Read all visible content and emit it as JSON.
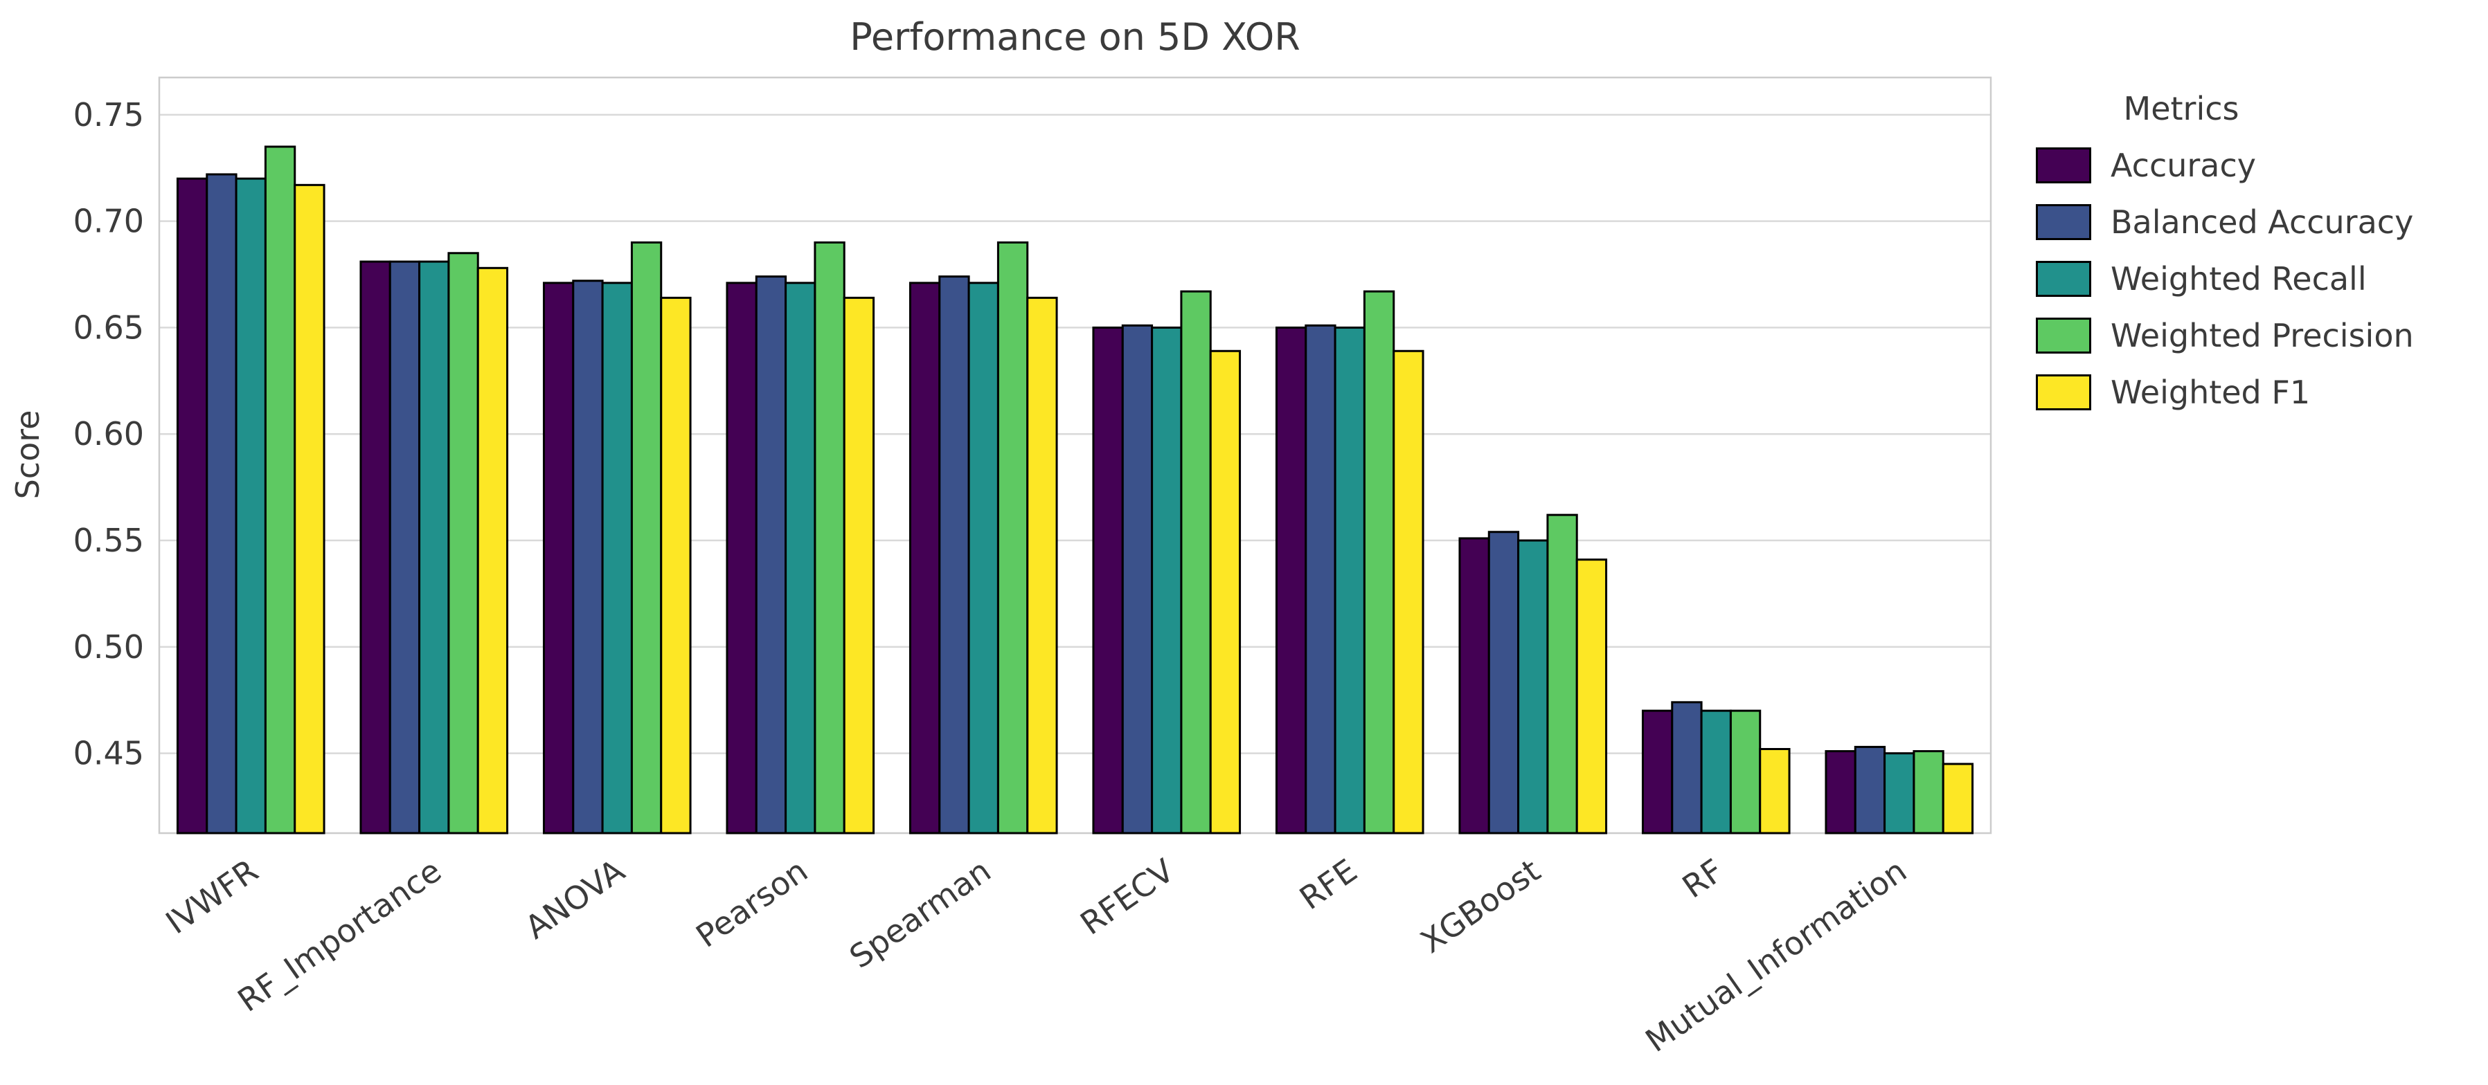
{
  "chart_data": {
    "type": "bar",
    "title": "Performance on 5D XOR",
    "ylabel": "Score",
    "xlabel": "",
    "legend_title": "Metrics",
    "legend_position": "right",
    "grid": true,
    "ylim": [
      0.4125,
      0.7675
    ],
    "yticks": [
      0.45,
      0.5,
      0.55,
      0.6,
      0.65,
      0.7,
      0.75
    ],
    "categories": [
      "IVWFR",
      "RF_Importance",
      "ANOVA",
      "Pearson",
      "Spearman",
      "RFECV",
      "RFE",
      "XGBoost",
      "RF",
      "Mutual_Information"
    ],
    "series": [
      {
        "name": "Accuracy",
        "color": "#440154",
        "values": [
          0.72,
          0.681,
          0.671,
          0.671,
          0.671,
          0.65,
          0.65,
          0.551,
          0.47,
          0.451
        ]
      },
      {
        "name": "Balanced Accuracy",
        "color": "#3b528b",
        "values": [
          0.722,
          0.681,
          0.672,
          0.674,
          0.674,
          0.651,
          0.651,
          0.554,
          0.474,
          0.453
        ]
      },
      {
        "name": "Weighted Recall",
        "color": "#21918c",
        "values": [
          0.72,
          0.681,
          0.671,
          0.671,
          0.671,
          0.65,
          0.65,
          0.55,
          0.47,
          0.45
        ]
      },
      {
        "name": "Weighted Precision",
        "color": "#5ec962",
        "values": [
          0.735,
          0.685,
          0.69,
          0.69,
          0.69,
          0.667,
          0.667,
          0.562,
          0.47,
          0.451
        ]
      },
      {
        "name": "Weighted F1",
        "color": "#fde725",
        "values": [
          0.717,
          0.678,
          0.664,
          0.664,
          0.664,
          0.639,
          0.639,
          0.541,
          0.452,
          0.445
        ]
      }
    ],
    "bar_edge_color": "#000000"
  },
  "colors": {
    "grid": "#d9d9d9",
    "axis_border": "#cccccc",
    "text": "#3b3b3b",
    "background": "#ffffff"
  }
}
